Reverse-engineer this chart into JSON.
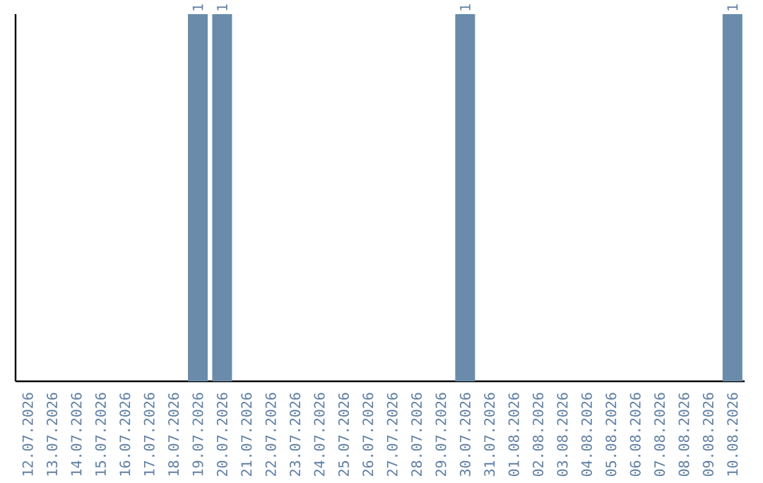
{
  "chart_data": {
    "type": "bar",
    "color": "#6a8caa",
    "categories": [
      "12.07.2026",
      "13.07.2026",
      "14.07.2026",
      "15.07.2026",
      "16.07.2026",
      "17.07.2026",
      "18.07.2026",
      "19.07.2026",
      "20.07.2026",
      "21.07.2026",
      "22.07.2026",
      "23.07.2026",
      "24.07.2026",
      "25.07.2026",
      "26.07.2026",
      "27.07.2026",
      "28.07.2026",
      "29.07.2026",
      "30.07.2026",
      "31.07.2026",
      "01.08.2026",
      "02.08.2026",
      "03.08.2026",
      "04.08.2026",
      "05.08.2026",
      "06.08.2026",
      "07.08.2026",
      "08.08.2026",
      "09.08.2026",
      "10.08.2026"
    ],
    "values": [
      0,
      0,
      0,
      0,
      0,
      0,
      0,
      1,
      1,
      0,
      0,
      0,
      0,
      0,
      0,
      0,
      0,
      0,
      1,
      0,
      0,
      0,
      0,
      0,
      0,
      0,
      0,
      0,
      0,
      1
    ],
    "value_labels": [
      null,
      null,
      null,
      null,
      null,
      null,
      null,
      "1",
      "1",
      null,
      null,
      null,
      null,
      null,
      null,
      null,
      null,
      null,
      "1",
      null,
      null,
      null,
      null,
      null,
      null,
      null,
      null,
      null,
      null,
      "1"
    ]
  }
}
